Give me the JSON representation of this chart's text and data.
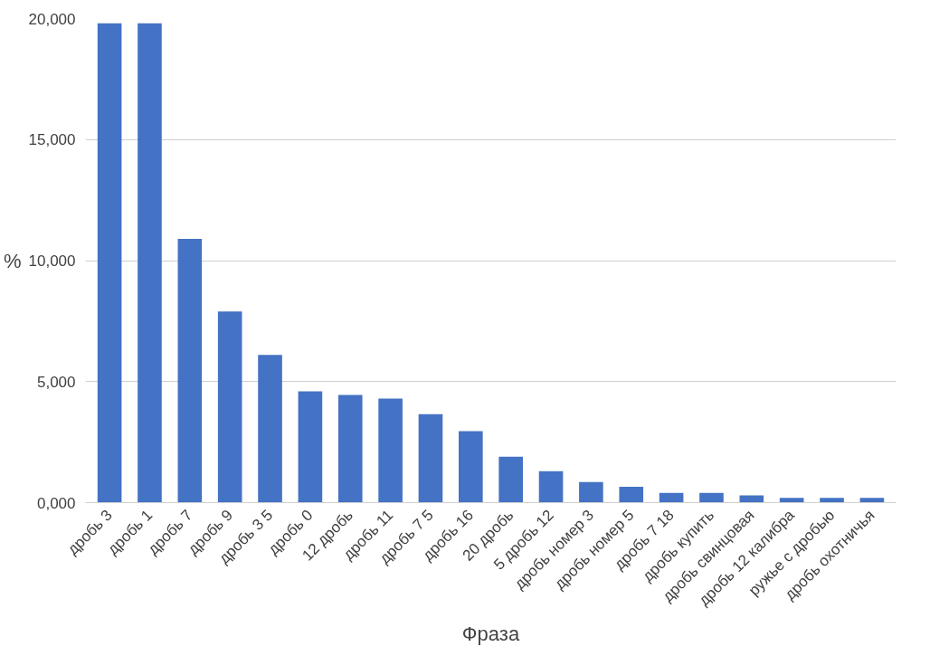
{
  "chart_data": {
    "type": "bar",
    "xlabel": "Фраза",
    "ylabel": "%",
    "categories": [
      "дробь 3",
      "дробь 1",
      "дробь 7",
      "дробь 9",
      "дробь 3 5",
      "дробь 0",
      "12 дробь",
      "дробь 11",
      "дробь 7 5",
      "дробь 16",
      "20 дробь",
      "5 дробь 12",
      "дробь номер 3",
      "дробь номер 5",
      "дробь 7 18",
      "дробь купить",
      "дробь свинцовая",
      "дробь 12 калибра",
      "ружье с дробью",
      "дробь охотничья"
    ],
    "values": [
      19800,
      19800,
      10900,
      7900,
      6100,
      4600,
      4450,
      4300,
      3650,
      2950,
      1900,
      1300,
      850,
      650,
      400,
      400,
      300,
      200,
      200,
      200
    ],
    "color": "#4472c4",
    "ylim": [
      0,
      20000
    ],
    "yticks": [
      {
        "value": 0,
        "label": "0,000"
      },
      {
        "value": 5000,
        "label": "5,000"
      },
      {
        "value": 10000,
        "label": "10,000"
      },
      {
        "value": 15000,
        "label": "15,000"
      },
      {
        "value": 20000,
        "label": "20,000"
      }
    ],
    "grid": "y"
  }
}
